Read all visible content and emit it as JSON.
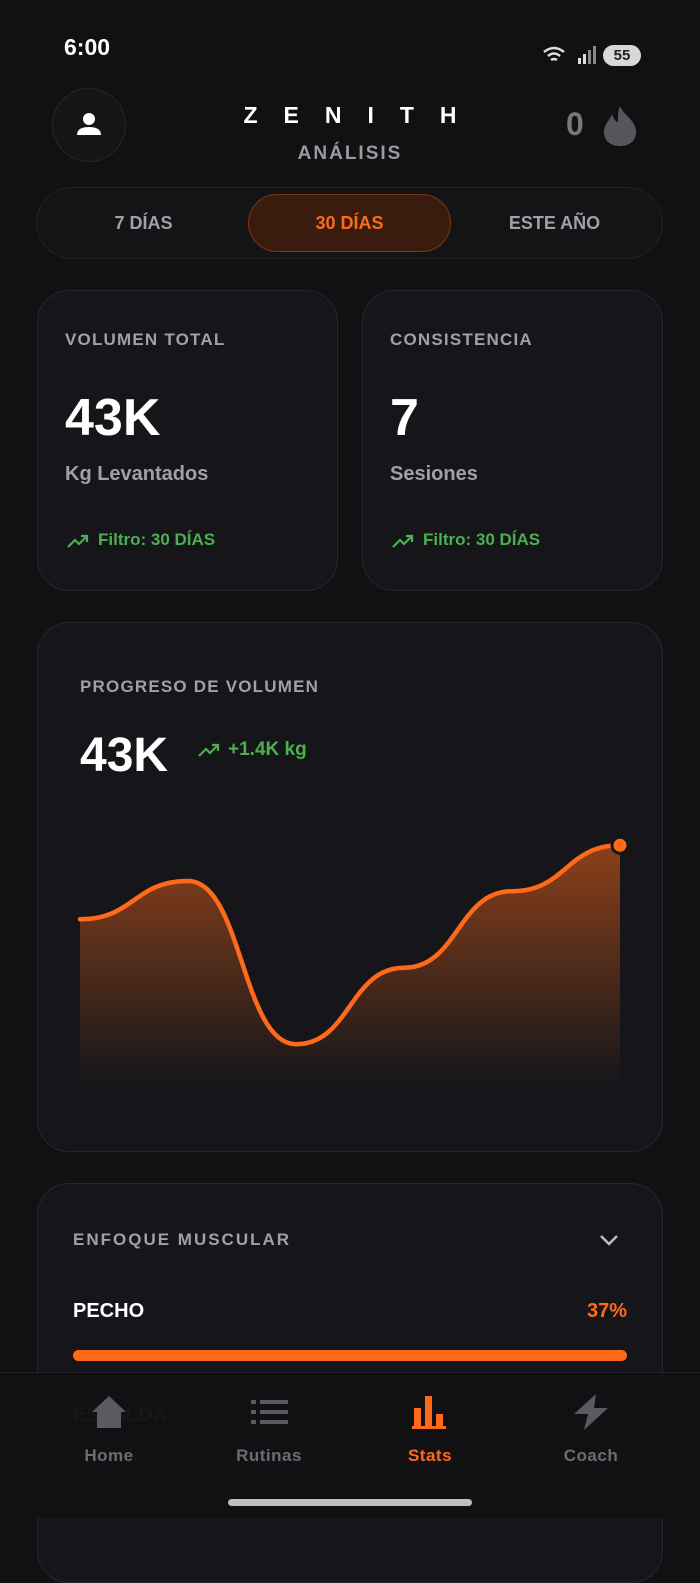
{
  "status": {
    "time": "6:00",
    "battery": "55"
  },
  "header": {
    "title": "ZENITH",
    "subtitle": "ANÁLISIS",
    "streak": "0"
  },
  "tabs": {
    "items": [
      "7 DÍAS",
      "30 DÍAS",
      "ESTE AÑO"
    ],
    "active": 1
  },
  "stats": [
    {
      "label": "VOLUMEN TOTAL",
      "value": "43K",
      "unit": "Kg Levantados",
      "filter": "Filtro: 30 DÍAS"
    },
    {
      "label": "CONSISTENCIA",
      "value": "7",
      "unit": "Sesiones",
      "filter": "Filtro: 30 DÍAS"
    }
  ],
  "chart_data": {
    "type": "area",
    "title": "PROGRESO DE VOLUMEN",
    "headline": "43K",
    "delta": "+1.4K kg",
    "values": [
      65,
      80,
      16,
      46,
      76,
      94
    ],
    "ylim": [
      0,
      100
    ],
    "color": "#ff6a1a"
  },
  "muscles": {
    "title": "ENFOQUE MUSCULAR",
    "items": [
      {
        "name": "PECHO",
        "value": 37,
        "value_label": "37%"
      },
      {
        "name": "ESPALDA"
      }
    ]
  },
  "nav": {
    "items": [
      "Home",
      "Rutinas",
      "Stats",
      "Coach"
    ],
    "active": 2
  }
}
